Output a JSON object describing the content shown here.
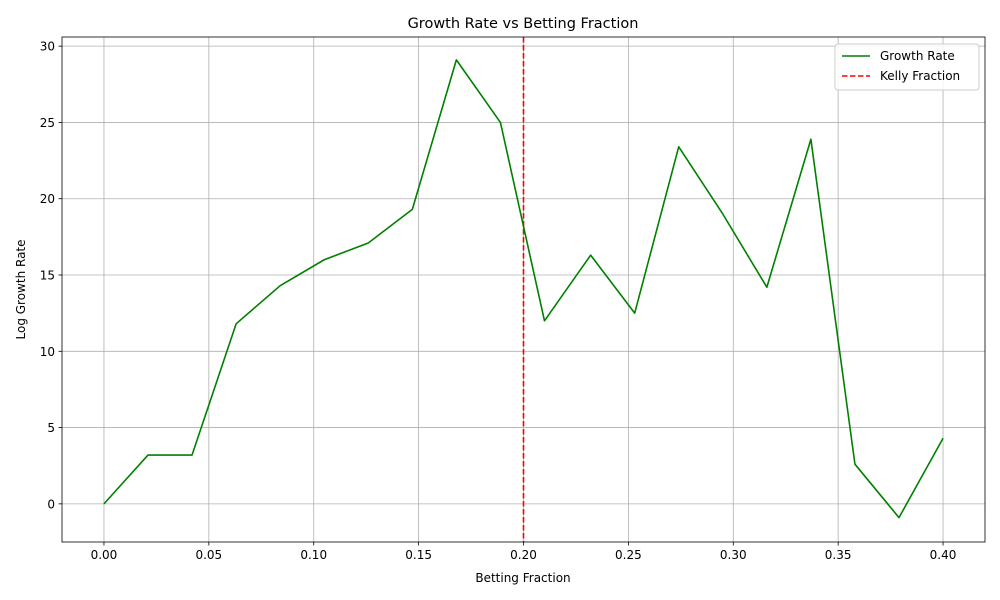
{
  "chart_data": {
    "type": "line",
    "title": "Growth Rate vs Betting Fraction",
    "xlabel": "Betting Fraction",
    "ylabel": "Log Growth Rate",
    "xlim": [
      -0.02,
      0.42
    ],
    "ylim": [
      -2.5,
      30.6
    ],
    "xticks": [
      0.0,
      0.05,
      0.1,
      0.15,
      0.2,
      0.25,
      0.3,
      0.35,
      0.4
    ],
    "xtick_labels": [
      "0.00",
      "0.05",
      "0.10",
      "0.15",
      "0.20",
      "0.25",
      "0.30",
      "0.35",
      "0.40"
    ],
    "yticks": [
      0,
      5,
      10,
      15,
      20,
      25,
      30
    ],
    "ytick_labels": [
      "0",
      "5",
      "10",
      "15",
      "20",
      "25",
      "30"
    ],
    "grid": true,
    "legend_position": "top-right",
    "series": [
      {
        "name": "Growth Rate",
        "color": "#008000",
        "style": "solid",
        "x": [
          0.0,
          0.021,
          0.042,
          0.063,
          0.084,
          0.105,
          0.126,
          0.147,
          0.168,
          0.189,
          0.21,
          0.232,
          0.253,
          0.274,
          0.295,
          0.316,
          0.337,
          0.358,
          0.379,
          0.4
        ],
        "y": [
          0.0,
          3.2,
          3.2,
          11.8,
          14.3,
          16.0,
          17.1,
          19.3,
          29.1,
          25.0,
          12.0,
          16.3,
          12.5,
          23.4,
          19.0,
          14.2,
          23.9,
          2.6,
          -0.9,
          4.3
        ]
      }
    ],
    "reference_lines": [
      {
        "name": "Kelly Fraction",
        "orientation": "vertical",
        "x": 0.2,
        "color": "#ff0000",
        "style": "dashed"
      }
    ]
  }
}
